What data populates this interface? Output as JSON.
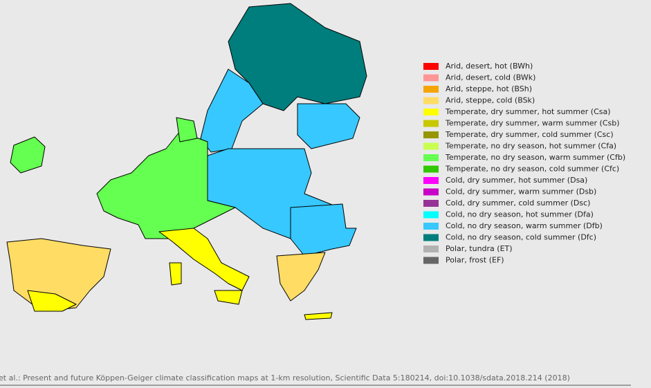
{
  "legend": {
    "items": [
      {
        "name": "Arid, desert, hot (BWh)",
        "color": "#ff0000"
      },
      {
        "name": "Arid, desert, cold (BWk)",
        "color": "#ff9696"
      },
      {
        "name": "Arid, steppe, hot (BSh)",
        "color": "#f5a500"
      },
      {
        "name": "Arid, steppe, cold (BSk)",
        "color": "#ffdc64"
      },
      {
        "name": "Temperate, dry summer, hot summer (Csa)",
        "color": "#ffff00"
      },
      {
        "name": "Temperate, dry summer, warm summer (Csb)",
        "color": "#c8c800"
      },
      {
        "name": "Temperate, dry summer, cold summer (Csc)",
        "color": "#969600"
      },
      {
        "name": "Temperate, no dry season, hot summer (Cfa)",
        "color": "#c8ff50"
      },
      {
        "name": "Temperate, no dry season, warm summer (Cfb)",
        "color": "#64ff50"
      },
      {
        "name": "Temperate, no dry season, cold summer (Cfc)",
        "color": "#32c800"
      },
      {
        "name": "Cold, dry summer, hot summer (Dsa)",
        "color": "#ff00ff"
      },
      {
        "name": "Cold, dry summer, warm summer (Dsb)",
        "color": "#c800c8"
      },
      {
        "name": "Cold, dry summer, cold summer (Dsc)",
        "color": "#963296"
      },
      {
        "name": "Cold, no dry season, hot summer (Dfa)",
        "color": "#00ffff"
      },
      {
        "name": "Cold, no dry season, warm summer (Dfb)",
        "color": "#37c8ff"
      },
      {
        "name": "Cold, no dry season, cold summer (Dfc)",
        "color": "#007d7d"
      },
      {
        "name": "Polar, tundra (ET)",
        "color": "#b2b2b2"
      },
      {
        "name": "Polar, frost (EF)",
        "color": "#666666"
      }
    ]
  },
  "caption": "et al.: Present and future Köppen-Geiger climate classification maps at 1-km resolution, Scientific Data 5:180214, doi:10.1038/sdata.2018.214 (2018)"
}
